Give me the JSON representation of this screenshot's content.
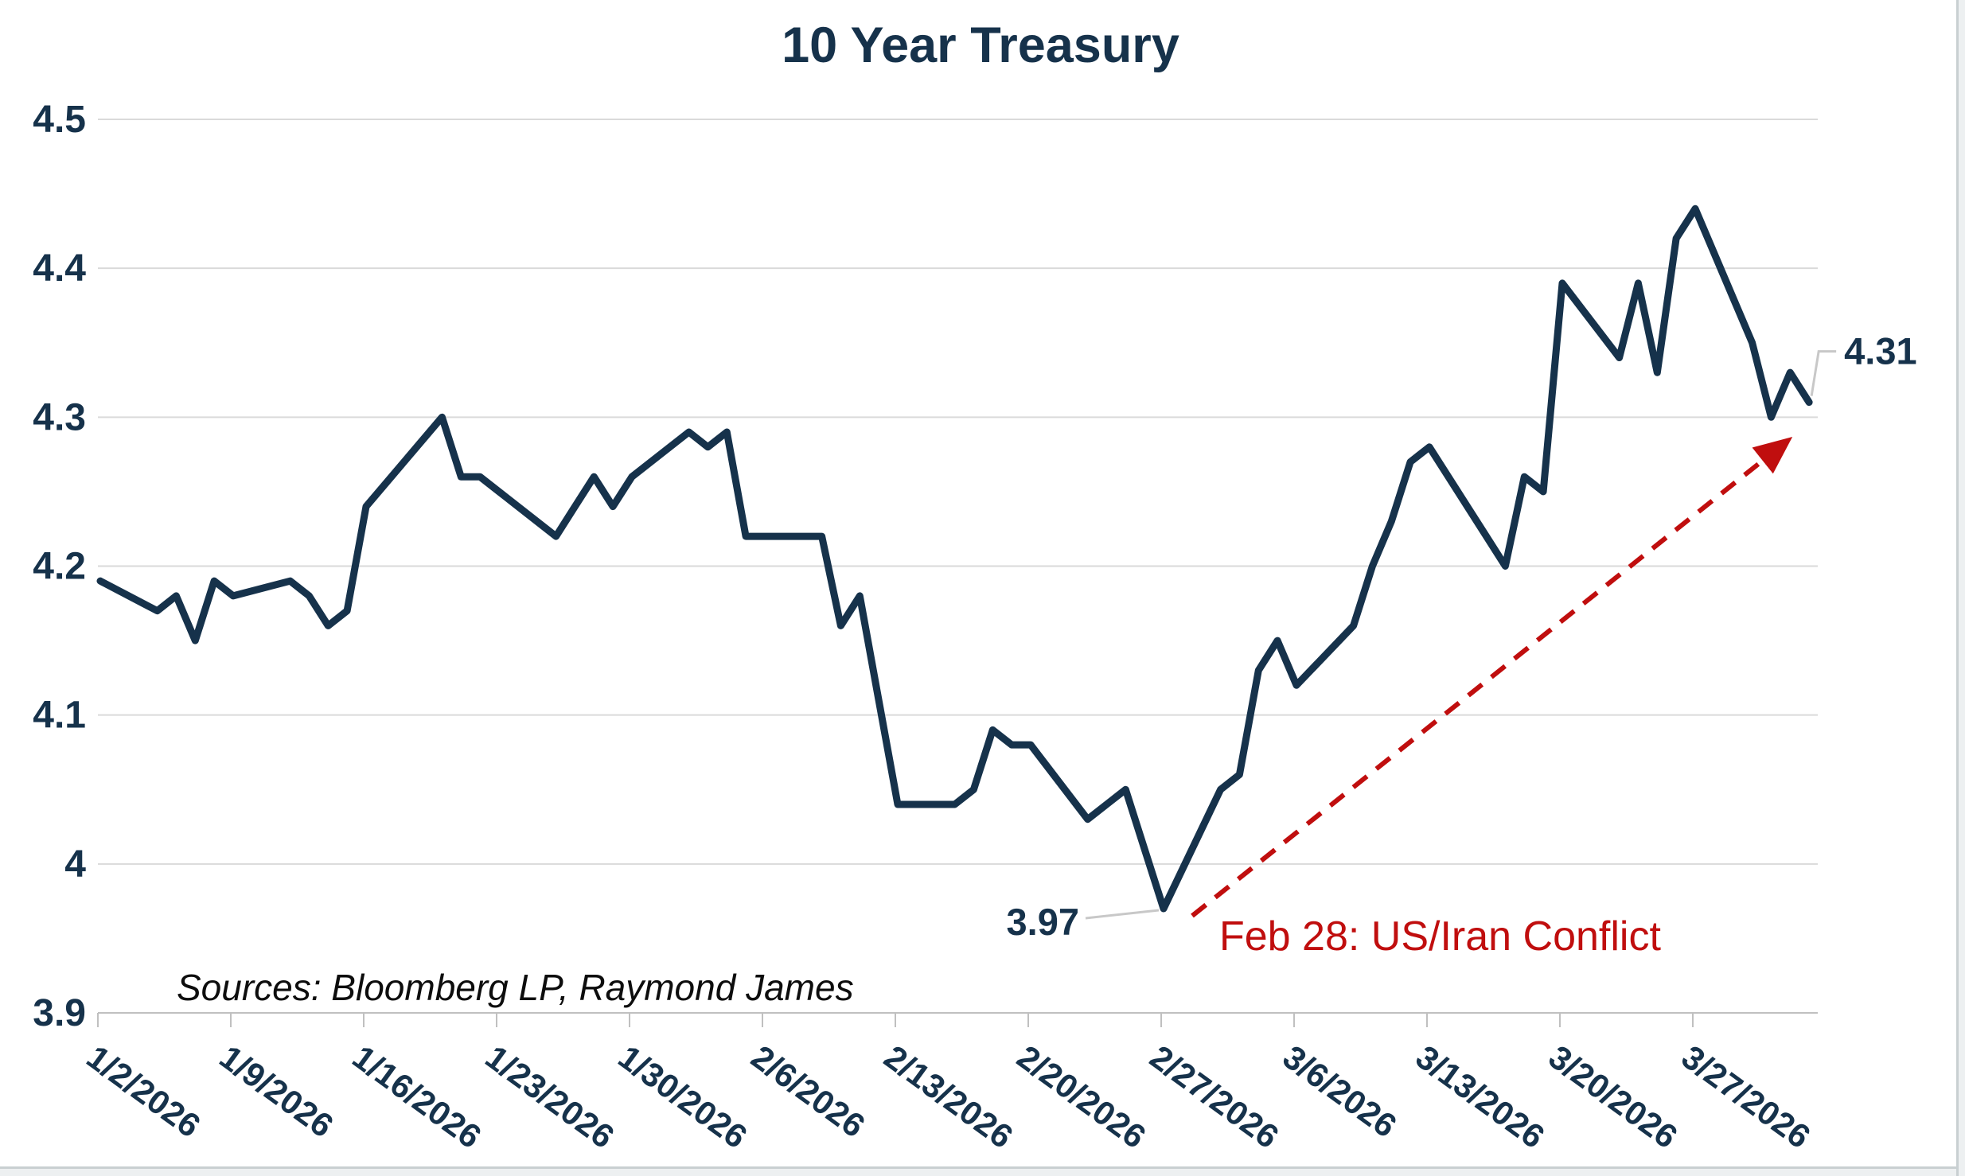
{
  "header": {
    "title": "10 Year Treasury",
    "title_color": "#16324B"
  },
  "source_note": {
    "text": "Sources: Bloomberg LP, Raymond James",
    "color": "#0d0d0d"
  },
  "page": {
    "background": "#FFFFFF",
    "edge_strip_color": "#edf0f1",
    "edge_line_color": "#c9d0d2"
  },
  "chart_data": {
    "type": "line",
    "title": "10 Year Treasury",
    "series_name": "10 Year Treasury Yield (%)",
    "line_color": "#16324B",
    "gridline_color": "#dadada",
    "axis_color": "#c0c0c0",
    "grid": "horizontal-only",
    "legend_position": "none",
    "ylim": [
      3.9,
      4.5
    ],
    "y_tick_labels": [
      "4.5",
      "4.4",
      "4.3",
      "4.2",
      "4.1",
      "4",
      "3.9"
    ],
    "x_tick_labels": [
      "1/2/2026",
      "1/9/2026",
      "1/16/2026",
      "1/23/2026",
      "1/30/2026",
      "2/6/2026",
      "2/13/2026",
      "2/20/2026",
      "2/27/2026",
      "3/6/2026",
      "3/13/2026",
      "3/20/2026",
      "3/27/2026"
    ],
    "points": [
      {
        "date": "1/2/2026",
        "value": 4.19
      },
      {
        "date": "1/5/2026",
        "value": 4.17
      },
      {
        "date": "1/6/2026",
        "value": 4.18
      },
      {
        "date": "1/7/2026",
        "value": 4.15
      },
      {
        "date": "1/8/2026",
        "value": 4.19
      },
      {
        "date": "1/9/2026",
        "value": 4.18
      },
      {
        "date": "1/12/2026",
        "value": 4.19
      },
      {
        "date": "1/13/2026",
        "value": 4.18
      },
      {
        "date": "1/14/2026",
        "value": 4.16
      },
      {
        "date": "1/15/2026",
        "value": 4.17
      },
      {
        "date": "1/16/2026",
        "value": 4.24
      },
      {
        "date": "1/20/2026",
        "value": 4.3
      },
      {
        "date": "1/21/2026",
        "value": 4.26
      },
      {
        "date": "1/22/2026",
        "value": 4.26
      },
      {
        "date": "1/23/2026",
        "value": 4.25
      },
      {
        "date": "1/26/2026",
        "value": 4.22
      },
      {
        "date": "1/27/2026",
        "value": 4.24
      },
      {
        "date": "1/28/2026",
        "value": 4.26
      },
      {
        "date": "1/29/2026",
        "value": 4.24
      },
      {
        "date": "1/30/2026",
        "value": 4.26
      },
      {
        "date": "2/2/2026",
        "value": 4.29
      },
      {
        "date": "2/3/2026",
        "value": 4.28
      },
      {
        "date": "2/4/2026",
        "value": 4.29
      },
      {
        "date": "2/5/2026",
        "value": 4.22
      },
      {
        "date": "2/6/2026",
        "value": 4.22
      },
      {
        "date": "2/9/2026",
        "value": 4.22
      },
      {
        "date": "2/10/2026",
        "value": 4.16
      },
      {
        "date": "2/11/2026",
        "value": 4.18
      },
      {
        "date": "2/12/2026",
        "value": 4.11
      },
      {
        "date": "2/13/2026",
        "value": 4.04
      },
      {
        "date": "2/16/2026",
        "value": 4.04
      },
      {
        "date": "2/17/2026",
        "value": 4.05
      },
      {
        "date": "2/18/2026",
        "value": 4.09
      },
      {
        "date": "2/19/2026",
        "value": 4.08
      },
      {
        "date": "2/20/2026",
        "value": 4.08
      },
      {
        "date": "2/23/2026",
        "value": 4.03
      },
      {
        "date": "2/24/2026",
        "value": 4.04
      },
      {
        "date": "2/25/2026",
        "value": 4.05
      },
      {
        "date": "2/26/2026",
        "value": 4.01
      },
      {
        "date": "2/27/2026",
        "value": 3.97
      },
      {
        "date": "3/2/2026",
        "value": 4.05
      },
      {
        "date": "3/3/2026",
        "value": 4.06
      },
      {
        "date": "3/4/2026",
        "value": 4.13
      },
      {
        "date": "3/5/2026",
        "value": 4.15
      },
      {
        "date": "3/6/2026",
        "value": 4.12
      },
      {
        "date": "3/9/2026",
        "value": 4.16
      },
      {
        "date": "3/10/2026",
        "value": 4.2
      },
      {
        "date": "3/11/2026",
        "value": 4.23
      },
      {
        "date": "3/12/2026",
        "value": 4.27
      },
      {
        "date": "3/13/2026",
        "value": 4.28
      },
      {
        "date": "3/16/2026",
        "value": 4.22
      },
      {
        "date": "3/17/2026",
        "value": 4.2
      },
      {
        "date": "3/18/2026",
        "value": 4.26
      },
      {
        "date": "3/19/2026",
        "value": 4.25
      },
      {
        "date": "3/20/2026",
        "value": 4.39
      },
      {
        "date": "3/23/2026",
        "value": 4.34
      },
      {
        "date": "3/24/2026",
        "value": 4.39
      },
      {
        "date": "3/25/2026",
        "value": 4.33
      },
      {
        "date": "3/26/2026",
        "value": 4.42
      },
      {
        "date": "3/27/2026",
        "value": 4.44
      },
      {
        "date": "3/30/2026",
        "value": 4.35
      },
      {
        "date": "3/31/2026",
        "value": 4.3
      },
      {
        "date": "4/1/2026",
        "value": 4.33
      },
      {
        "date": "4/2/2026",
        "value": 4.31
      }
    ],
    "annotations": {
      "low": {
        "label": "3.97",
        "date": "2/27/2026",
        "value": 3.97,
        "label_color": "#16324B",
        "leader_color": "#c8c8c8"
      },
      "last": {
        "label": "4.31",
        "date": "4/2/2026",
        "value": 4.31,
        "label_color": "#16324B",
        "leader_color": "#c8c8c8"
      },
      "event": {
        "text": "Feb 28: US/Iran Conflict",
        "color": "#C00E0E",
        "arrow_from_date": "2/27/2026",
        "arrow_to_date": "4/2/2026"
      }
    }
  }
}
